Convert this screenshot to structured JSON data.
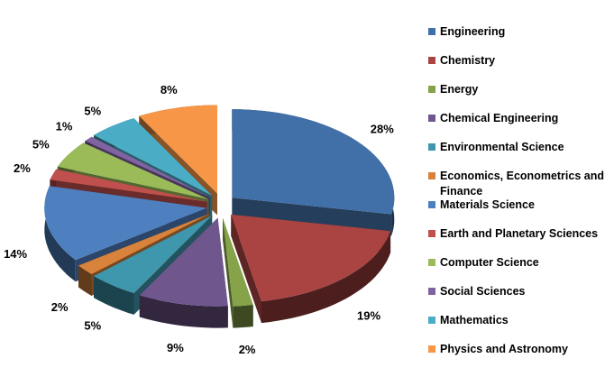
{
  "chart_data": {
    "type": "pie3d",
    "categories": [
      "Engineering",
      "Chemistry",
      "Energy",
      "Chemical Engineering",
      "Environmental Science",
      "Economics, Econometrics and Finance",
      "Materials Science",
      "Earth and Planetary Sciences",
      "Computer Science",
      "Social Sciences",
      "Mathematics",
      "Physics and Astronomy"
    ],
    "values": [
      28,
      19,
      2,
      9,
      5,
      2,
      14,
      2,
      5,
      1,
      5,
      8
    ],
    "value_labels": [
      "28%",
      "19%",
      "2%",
      "9%",
      "5%",
      "2%",
      "14%",
      "2%",
      "5%",
      "1%",
      "5%",
      "8%"
    ],
    "colors": [
      "#4170a8",
      "#a94442",
      "#86a34a",
      "#6f568d",
      "#3f97ad",
      "#d9823b",
      "#4e80c0",
      "#c0504d",
      "#9bbb59",
      "#8064a2",
      "#4bacc6",
      "#f79646"
    ],
    "legend": "right"
  }
}
